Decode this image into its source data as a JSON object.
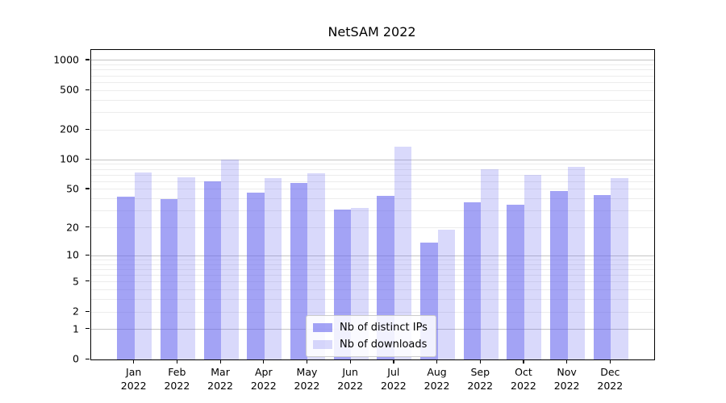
{
  "title": "NetSAM 2022",
  "chart_data": {
    "type": "bar",
    "title": "NetSAM 2022",
    "categories": [
      "Jan",
      "Feb",
      "Mar",
      "Apr",
      "May",
      "Jun",
      "Jul",
      "Aug",
      "Sep",
      "Oct",
      "Nov",
      "Dec"
    ],
    "x_sublabel": "2022",
    "series": [
      {
        "name": "Nb of distinct IPs",
        "color": "rgba(102,102,238,0.6)",
        "values": [
          42,
          40,
          60,
          46,
          58,
          31,
          43,
          14,
          37,
          35,
          48,
          44
        ]
      },
      {
        "name": "Nb of downloads",
        "color": "rgba(102,102,238,0.25)",
        "values": [
          74,
          66,
          100,
          65,
          73,
          32,
          135,
          19,
          80,
          70,
          85,
          65
        ]
      }
    ],
    "xlabel": "",
    "ylabel": "",
    "yscale": "log1p",
    "yticks": [
      0,
      1,
      2,
      5,
      10,
      20,
      50,
      100,
      200,
      500,
      1000
    ],
    "ylim": [
      0,
      1274
    ],
    "grid": true,
    "legend_position": "lower center",
    "colors": {
      "grid_major": "#c4c4c4",
      "grid_minor": "#ececec",
      "spine": "#000000",
      "legend_border": "#cccccc"
    }
  }
}
